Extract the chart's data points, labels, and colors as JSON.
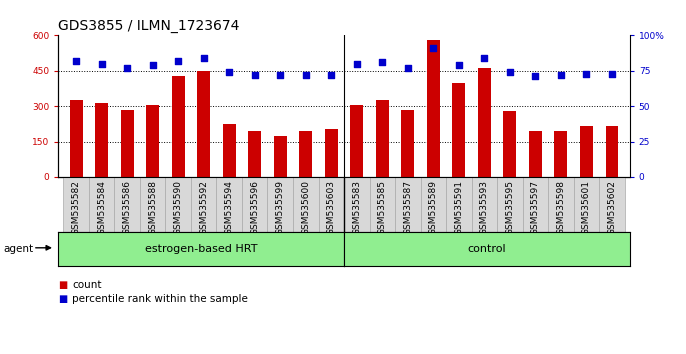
{
  "title": "GDS3855 / ILMN_1723674",
  "categories": [
    "GSM535582",
    "GSM535584",
    "GSM535586",
    "GSM535588",
    "GSM535590",
    "GSM535592",
    "GSM535594",
    "GSM535596",
    "GSM535599",
    "GSM535600",
    "GSM535603",
    "GSM535583",
    "GSM535585",
    "GSM535587",
    "GSM535589",
    "GSM535591",
    "GSM535593",
    "GSM535595",
    "GSM535597",
    "GSM535598",
    "GSM535601",
    "GSM535602"
  ],
  "bar_values": [
    325,
    315,
    285,
    305,
    430,
    450,
    225,
    195,
    175,
    195,
    205,
    305,
    325,
    285,
    580,
    400,
    460,
    280,
    195,
    195,
    215,
    215
  ],
  "percentile_values": [
    82,
    80,
    77,
    79,
    82,
    84,
    74,
    72,
    72,
    72,
    72,
    80,
    81,
    77,
    91,
    79,
    84,
    74,
    71,
    72,
    73,
    73
  ],
  "bar_color": "#CC0000",
  "dot_color": "#0000CC",
  "bar_width": 0.5,
  "ylim_left": [
    0,
    600
  ],
  "ylim_right": [
    0,
    100
  ],
  "yticks_left": [
    0,
    150,
    300,
    450,
    600
  ],
  "ytick_labels_left": [
    "0",
    "150",
    "300",
    "450",
    "600"
  ],
  "yticks_right": [
    0,
    25,
    50,
    75,
    100
  ],
  "ytick_labels_right": [
    "0",
    "25",
    "50",
    "75",
    "100%"
  ],
  "group1_label": "estrogen-based HRT",
  "group2_label": "control",
  "group1_count": 11,
  "group2_count": 11,
  "agent_label": "agent",
  "legend_bar_label": "count",
  "legend_dot_label": "percentile rank within the sample",
  "background_color": "#ffffff",
  "plot_bg_color": "#ffffff",
  "xtick_bg_color": "#d8d8d8",
  "group_color": "#90EE90",
  "title_fontsize": 10,
  "tick_fontsize": 6.5,
  "legend_fontsize": 7.5
}
